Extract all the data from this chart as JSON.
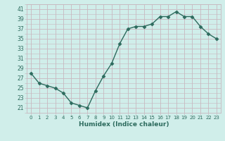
{
  "x": [
    0,
    1,
    2,
    3,
    4,
    5,
    6,
    7,
    8,
    9,
    10,
    11,
    12,
    13,
    14,
    15,
    16,
    17,
    18,
    19,
    20,
    21,
    22,
    23
  ],
  "y": [
    28,
    26,
    25.5,
    25,
    24,
    22,
    21.5,
    21,
    24.5,
    27.5,
    30,
    34,
    37,
    37.5,
    37.5,
    38,
    39.5,
    39.5,
    40.5,
    39.5,
    39.5,
    37.5,
    36,
    35
  ],
  "xlabel": "Humidex (Indice chaleur)",
  "xlim": [
    -0.5,
    23.5
  ],
  "ylim": [
    20,
    42
  ],
  "yticks": [
    21,
    23,
    25,
    27,
    29,
    31,
    33,
    35,
    37,
    39,
    41
  ],
  "xticks": [
    0,
    1,
    2,
    3,
    4,
    5,
    6,
    7,
    8,
    9,
    10,
    11,
    12,
    13,
    14,
    15,
    16,
    17,
    18,
    19,
    20,
    21,
    22,
    23
  ],
  "xtick_labels": [
    "0",
    "1",
    "2",
    "3",
    "4",
    "5",
    "6",
    "7",
    "8",
    "9",
    "10",
    "11",
    "12",
    "13",
    "14",
    "15",
    "16",
    "17",
    "18",
    "19",
    "20",
    "21",
    "22",
    "23"
  ],
  "line_color": "#2d6b5e",
  "marker": "D",
  "marker_size": 2.5,
  "bg_color": "#d0eeea",
  "grid_color": "#c8b8c0"
}
